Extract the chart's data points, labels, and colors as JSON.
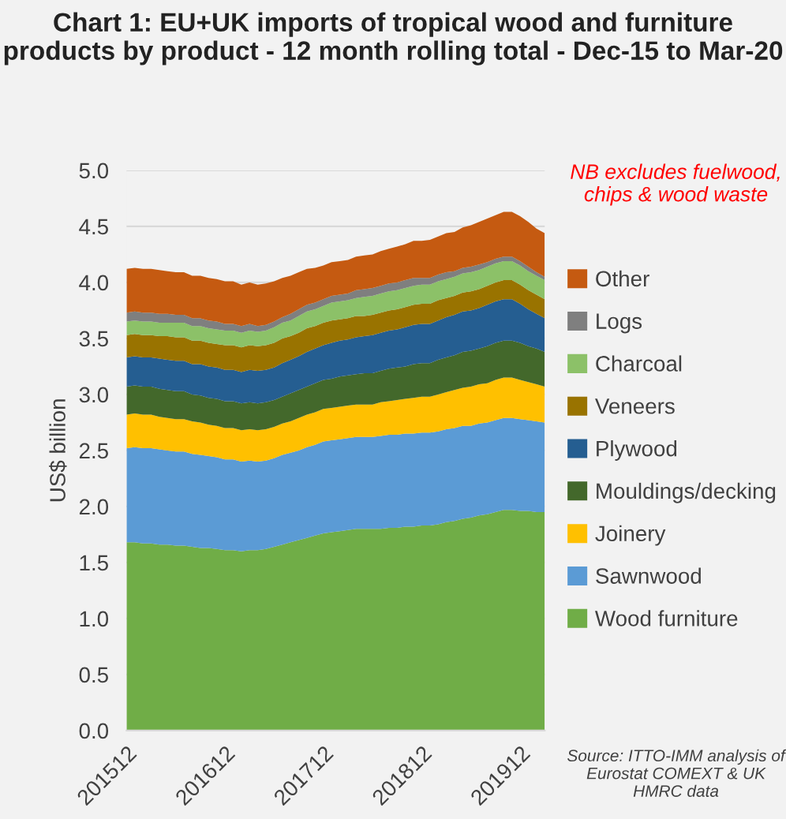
{
  "chart_data": {
    "type": "area",
    "stacked": true,
    "title": "Chart 1: EU+UK imports of tropical wood and furniture products by product - 12 month rolling total - Dec-15 to Mar-20",
    "ylabel": "US$ billion",
    "annotations": [
      "NB excludes fuelwood, chips & wood waste",
      "Source: ITTO-IMM analysis of Eurostat COMEXT & UK HMRC data"
    ],
    "categories": [
      "201512",
      null,
      null,
      null,
      null,
      null,
      null,
      null,
      null,
      null,
      null,
      null,
      "201612",
      null,
      null,
      null,
      null,
      null,
      null,
      null,
      null,
      null,
      null,
      null,
      "201712",
      null,
      null,
      null,
      null,
      null,
      null,
      null,
      null,
      null,
      null,
      null,
      "201812",
      null,
      null,
      null,
      null,
      null,
      null,
      null,
      null,
      null,
      null,
      null,
      "201912",
      null,
      null,
      null
    ],
    "ylim": [
      0,
      5
    ],
    "yticks": [
      {
        "value": 0,
        "label": "0.0"
      },
      {
        "value": 0.5,
        "label": "0.5"
      },
      {
        "value": 1,
        "label": "1.0"
      },
      {
        "value": 1.5,
        "label": "1.5"
      },
      {
        "value": 2,
        "label": "2.0"
      },
      {
        "value": 2.5,
        "label": "2.5"
      },
      {
        "value": 3,
        "label": "3.0"
      },
      {
        "value": 3.5,
        "label": "3.5"
      },
      {
        "value": 4,
        "label": "4.0"
      },
      {
        "value": 4.5,
        "label": "4.5"
      },
      {
        "value": 5,
        "label": "5.0"
      }
    ],
    "grid": "y",
    "legend": "right",
    "series": [
      {
        "name": "Wood furniture",
        "color": "#70ad47",
        "values": [
          1.68,
          1.68,
          1.67,
          1.67,
          1.66,
          1.66,
          1.65,
          1.65,
          1.64,
          1.63,
          1.63,
          1.62,
          1.61,
          1.61,
          1.6,
          1.61,
          1.61,
          1.62,
          1.64,
          1.66,
          1.68,
          1.7,
          1.72,
          1.74,
          1.76,
          1.77,
          1.78,
          1.79,
          1.8,
          1.8,
          1.8,
          1.8,
          1.81,
          1.81,
          1.82,
          1.82,
          1.83,
          1.83,
          1.84,
          1.86,
          1.87,
          1.89,
          1.9,
          1.92,
          1.93,
          1.95,
          1.97,
          1.97,
          1.96,
          1.96,
          1.95,
          1.95
        ]
      },
      {
        "name": "Sawnwood",
        "color": "#5b9bd5",
        "values": [
          0.84,
          0.85,
          0.85,
          0.85,
          0.85,
          0.84,
          0.84,
          0.84,
          0.83,
          0.83,
          0.82,
          0.82,
          0.81,
          0.81,
          0.8,
          0.8,
          0.79,
          0.79,
          0.79,
          0.8,
          0.8,
          0.8,
          0.81,
          0.81,
          0.82,
          0.82,
          0.82,
          0.82,
          0.82,
          0.82,
          0.82,
          0.83,
          0.83,
          0.83,
          0.83,
          0.83,
          0.83,
          0.83,
          0.83,
          0.83,
          0.83,
          0.83,
          0.82,
          0.82,
          0.82,
          0.82,
          0.82,
          0.82,
          0.82,
          0.81,
          0.81,
          0.8
        ]
      },
      {
        "name": "Joinery",
        "color": "#ffc000",
        "values": [
          0.3,
          0.3,
          0.3,
          0.3,
          0.29,
          0.29,
          0.29,
          0.29,
          0.29,
          0.29,
          0.28,
          0.28,
          0.28,
          0.28,
          0.28,
          0.28,
          0.28,
          0.28,
          0.28,
          0.28,
          0.28,
          0.29,
          0.29,
          0.29,
          0.29,
          0.29,
          0.29,
          0.29,
          0.29,
          0.29,
          0.29,
          0.3,
          0.3,
          0.31,
          0.31,
          0.32,
          0.32,
          0.32,
          0.33,
          0.33,
          0.34,
          0.34,
          0.35,
          0.35,
          0.35,
          0.36,
          0.36,
          0.36,
          0.35,
          0.34,
          0.33,
          0.32
        ]
      },
      {
        "name": "Mouldings/decking",
        "color": "#43682b",
        "values": [
          0.25,
          0.25,
          0.25,
          0.25,
          0.25,
          0.25,
          0.25,
          0.25,
          0.24,
          0.24,
          0.24,
          0.24,
          0.24,
          0.24,
          0.24,
          0.24,
          0.24,
          0.24,
          0.24,
          0.24,
          0.25,
          0.25,
          0.25,
          0.26,
          0.26,
          0.26,
          0.27,
          0.27,
          0.27,
          0.28,
          0.28,
          0.28,
          0.29,
          0.29,
          0.29,
          0.3,
          0.3,
          0.3,
          0.31,
          0.31,
          0.31,
          0.32,
          0.32,
          0.32,
          0.33,
          0.33,
          0.33,
          0.33,
          0.33,
          0.32,
          0.32,
          0.31
        ]
      },
      {
        "name": "Plywood",
        "color": "#255e91",
        "values": [
          0.26,
          0.26,
          0.26,
          0.26,
          0.27,
          0.27,
          0.27,
          0.27,
          0.27,
          0.28,
          0.28,
          0.28,
          0.28,
          0.28,
          0.28,
          0.29,
          0.29,
          0.29,
          0.29,
          0.3,
          0.3,
          0.3,
          0.31,
          0.31,
          0.31,
          0.32,
          0.32,
          0.32,
          0.33,
          0.33,
          0.34,
          0.34,
          0.34,
          0.34,
          0.35,
          0.35,
          0.35,
          0.35,
          0.35,
          0.36,
          0.36,
          0.36,
          0.36,
          0.36,
          0.37,
          0.37,
          0.37,
          0.37,
          0.35,
          0.33,
          0.31,
          0.3
        ]
      },
      {
        "name": "Veneers",
        "color": "#997300",
        "values": [
          0.2,
          0.2,
          0.2,
          0.2,
          0.2,
          0.21,
          0.21,
          0.21,
          0.21,
          0.21,
          0.21,
          0.21,
          0.22,
          0.22,
          0.22,
          0.22,
          0.22,
          0.22,
          0.22,
          0.22,
          0.21,
          0.21,
          0.21,
          0.2,
          0.2,
          0.2,
          0.19,
          0.19,
          0.19,
          0.18,
          0.18,
          0.18,
          0.18,
          0.18,
          0.18,
          0.18,
          0.18,
          0.18,
          0.18,
          0.17,
          0.17,
          0.17,
          0.17,
          0.17,
          0.17,
          0.17,
          0.17,
          0.17,
          0.17,
          0.17,
          0.17,
          0.17
        ]
      },
      {
        "name": "Charcoal",
        "color": "#8cc168",
        "values": [
          0.12,
          0.12,
          0.12,
          0.12,
          0.12,
          0.12,
          0.13,
          0.13,
          0.13,
          0.13,
          0.13,
          0.13,
          0.13,
          0.13,
          0.13,
          0.13,
          0.13,
          0.13,
          0.14,
          0.14,
          0.14,
          0.15,
          0.15,
          0.15,
          0.15,
          0.16,
          0.16,
          0.16,
          0.16,
          0.17,
          0.17,
          0.17,
          0.17,
          0.17,
          0.17,
          0.17,
          0.17,
          0.17,
          0.17,
          0.17,
          0.17,
          0.17,
          0.17,
          0.17,
          0.17,
          0.17,
          0.17,
          0.17,
          0.17,
          0.17,
          0.17,
          0.17
        ]
      },
      {
        "name": "Logs",
        "color": "#7f7f7f",
        "values": [
          0.08,
          0.08,
          0.08,
          0.08,
          0.08,
          0.08,
          0.07,
          0.07,
          0.07,
          0.07,
          0.07,
          0.07,
          0.06,
          0.06,
          0.06,
          0.06,
          0.05,
          0.05,
          0.05,
          0.05,
          0.06,
          0.06,
          0.06,
          0.06,
          0.06,
          0.06,
          0.06,
          0.06,
          0.07,
          0.07,
          0.07,
          0.07,
          0.07,
          0.07,
          0.07,
          0.07,
          0.06,
          0.06,
          0.06,
          0.06,
          0.05,
          0.05,
          0.05,
          0.05,
          0.04,
          0.04,
          0.04,
          0.04,
          0.04,
          0.04,
          0.03,
          0.03
        ]
      },
      {
        "name": "Other",
        "color": "#c55a11",
        "values": [
          0.39,
          0.39,
          0.39,
          0.39,
          0.39,
          0.38,
          0.38,
          0.38,
          0.38,
          0.38,
          0.38,
          0.38,
          0.38,
          0.38,
          0.37,
          0.37,
          0.37,
          0.37,
          0.36,
          0.35,
          0.34,
          0.33,
          0.32,
          0.31,
          0.3,
          0.3,
          0.3,
          0.3,
          0.3,
          0.3,
          0.3,
          0.31,
          0.31,
          0.32,
          0.32,
          0.33,
          0.33,
          0.34,
          0.34,
          0.35,
          0.35,
          0.36,
          0.37,
          0.38,
          0.39,
          0.39,
          0.4,
          0.4,
          0.4,
          0.4,
          0.39,
          0.39
        ]
      }
    ]
  }
}
